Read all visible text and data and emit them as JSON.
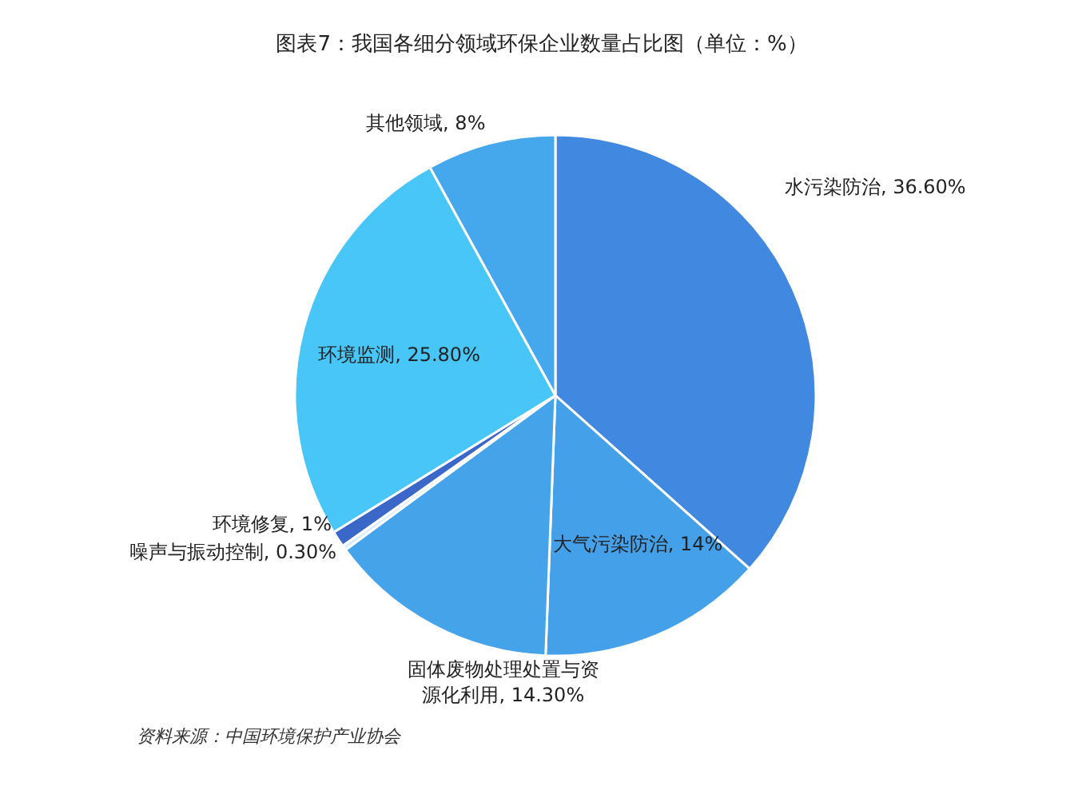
{
  "chart_data": {
    "type": "pie",
    "title": "图表7：我国各细分领域环保企业数量占比图（单位：%）",
    "categories": [
      "水污染防治",
      "大气污染防治",
      "固体废物处理处置与资源化利用",
      "噪声与振动控制",
      "环境修复",
      "环境监测",
      "其他领域"
    ],
    "values": [
      36.6,
      14,
      14.3,
      0.3,
      1,
      25.8,
      8
    ],
    "value_labels": [
      "36.60%",
      "14%",
      "14.30%",
      "0.30%",
      "1%",
      "25.80%",
      "8%"
    ],
    "colors": [
      "#4189e0",
      "#45a0ea",
      "#45a3ea",
      "#d8ecfa",
      "#3b68c8",
      "#49c6f8",
      "#45a8ec"
    ],
    "annotations": [
      "资料来源：中国环境保护产业协会"
    ]
  }
}
